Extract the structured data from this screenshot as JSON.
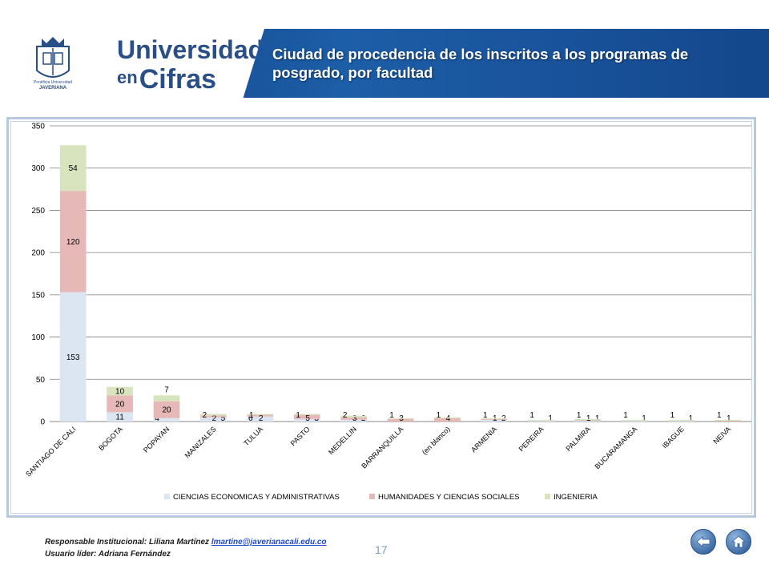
{
  "header": {
    "brand_line1": "Universidad",
    "brand_line2_small": "en",
    "brand_line2_big": "Cifras",
    "title": "Ciudad de procedencia de los inscritos a los programas de posgrado, por facultad",
    "crest_text_1": "Pontificia Universidad",
    "crest_text_2": "JAVERIANA"
  },
  "footer": {
    "responsible_label": "Responsable Institucional: Liliana Martínez",
    "responsible_email": "lmartine@javerianacali.edu.co",
    "leader_line": "Usuario líder: Adriana Fernández",
    "page_number": "17",
    "back_icon": "back-arrow-icon",
    "home_icon": "home-icon"
  },
  "chart_data": {
    "type": "bar",
    "stacked": true,
    "categories": [
      "SANTIAGO DE CALI",
      "BOGOTA",
      "POPAYAN",
      "MANIZALES",
      "TULUA",
      "PASTO",
      "MEDELLIN",
      "BARRANQUILLA",
      "(en blanco)",
      "ARMENIA",
      "PEREIRA",
      "PALMIRA",
      "BUCARAMANGA",
      "IBAGUE",
      "NEIVA"
    ],
    "series": [
      {
        "name": "CIENCIAS ECONOMICAS Y ADMINISTRATIVAS",
        "color": "#dce6f2",
        "values": [
          153,
          11,
          4,
          5,
          6,
          3,
          2,
          0,
          0,
          2,
          1,
          1,
          1,
          1,
          0
        ]
      },
      {
        "name": "HUMANIDADES Y CIENCIAS SOCIALES",
        "color": "#e6b9b8",
        "values": [
          120,
          20,
          20,
          2,
          2,
          5,
          3,
          3,
          4,
          1,
          0,
          1,
          0,
          0,
          1
        ]
      },
      {
        "name": "INGENIERIA",
        "color": "#d7e4bd",
        "values": [
          54,
          10,
          7,
          2,
          1,
          1,
          2,
          1,
          1,
          1,
          1,
          1,
          1,
          1,
          1
        ]
      }
    ],
    "data_labels": [
      [
        "153",
        "11",
        "4",
        "5",
        "6",
        "3",
        "2",
        "",
        "",
        "2",
        "1",
        "1",
        "1",
        "1",
        ""
      ],
      [
        "120",
        "20",
        "20",
        "2",
        "2",
        "5",
        "3",
        "3",
        "4",
        "1",
        "",
        "1",
        "",
        "",
        "1"
      ],
      [
        "54",
        "10",
        "7",
        "2",
        "1",
        "1",
        "2",
        "1",
        "1",
        "1",
        "1",
        "1",
        "1",
        "1",
        "1"
      ]
    ],
    "ylim": [
      0,
      350
    ],
    "yticks": [
      0,
      50,
      100,
      150,
      200,
      250,
      300,
      350
    ],
    "grid": true,
    "legend_position": "bottom"
  }
}
